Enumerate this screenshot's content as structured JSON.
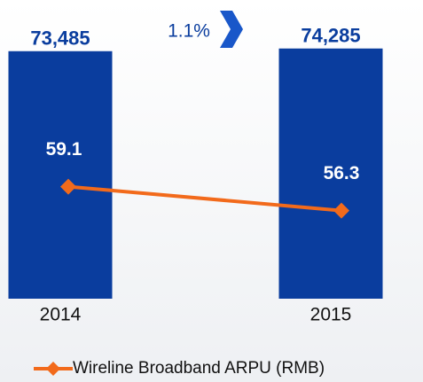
{
  "chart_data": {
    "type": "bar+line",
    "categories": [
      "2014",
      "2015"
    ],
    "series": [
      {
        "type": "bar",
        "color": "#0a3d9e",
        "values": [
          73485,
          74285
        ],
        "value_labels": [
          "73,485",
          "74,285"
        ]
      },
      {
        "type": "line",
        "name": "Wireline Broadband ARPU (RMB)",
        "color": "#f26a1b",
        "axis": "y2",
        "values": [
          59.1,
          56.3
        ]
      }
    ],
    "annotation": "1.1%",
    "ylim": [
      0,
      80000
    ],
    "y2lim": [
      46,
      77.5
    ],
    "legend": "bottom"
  }
}
